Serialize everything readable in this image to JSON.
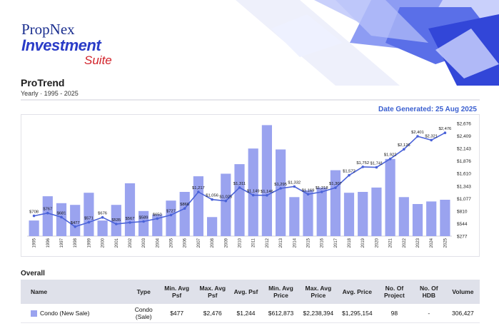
{
  "brand": {
    "line1": "PropNex",
    "line2": "Investment",
    "line3": "Suite"
  },
  "report": {
    "title": "ProTrend",
    "subtitle": "Yearly · 1995 - 2025",
    "generated": "Date Generated: 25 Aug 2025"
  },
  "colors": {
    "bar": "#9aa3ef",
    "line": "#4a62d8",
    "accent": "#3a5fd0"
  },
  "chart_data": {
    "type": "bar",
    "categories": [
      "1995",
      "1996",
      "1997",
      "1998",
      "1999",
      "2000",
      "2001",
      "2002",
      "2003",
      "2004",
      "2005",
      "2006",
      "2007",
      "2008",
      "2009",
      "2010",
      "2011",
      "2012",
      "2013",
      "2014",
      "2015",
      "2016",
      "2017",
      "2018",
      "2019",
      "2020",
      "2021",
      "2022",
      "2023",
      "2024",
      "2025"
    ],
    "series": [
      {
        "type": "bar",
        "axis": "left",
        "values": [
          1800,
          4600,
          3800,
          3600,
          5000,
          1800,
          3600,
          6100,
          2900,
          2500,
          4100,
          5100,
          6900,
          2200,
          7200,
          8300,
          10100,
          12800,
          10000,
          4500,
          5300,
          5600,
          7600,
          5000,
          5100,
          5600,
          8900,
          4500,
          3700,
          4000,
          4200
        ]
      },
      {
        "type": "line",
        "axis": "right",
        "values": [
          708,
          767,
          681,
          477,
          571,
          676,
          535,
          567,
          589,
          650,
          727,
          866,
          1217,
          1056,
          1025,
          1311,
          1149,
          1146,
          1295,
          1332,
          1169,
          1218,
          1307,
          1572,
          1752,
          1741,
          1922,
          2126,
          2401,
          2321,
          2476
        ],
        "labels": [
          "$708",
          "$767",
          "$681",
          "$477",
          "$571",
          "$676",
          "$535",
          "$567",
          "$589",
          "$650",
          "$727",
          "$866",
          "$1,217",
          "$1,056",
          "$1,025",
          "$1,311",
          "$1,149",
          "$1,146",
          "$1,295",
          "$1,332",
          "$1,169",
          "$1,218",
          "$1,307",
          "$1,572",
          "$1,752",
          "$1,741",
          "$1,922",
          "$2,126",
          "$2,401",
          "$2,321",
          "$2,476"
        ]
      }
    ],
    "y_right_ticks": [
      "$2,676",
      "$2,409",
      "$2,143",
      "$1,876",
      "$1,610",
      "$1,343",
      "$1,077",
      "$810",
      "$544",
      "$277"
    ],
    "y_right_range": [
      277,
      2676
    ],
    "grid": false
  },
  "overall": {
    "label": "Overall",
    "headers": [
      "Name",
      "Type",
      "Min. Avg Psf",
      "Max. Avg Psf",
      "Avg. Psf",
      "Min. Avg Price",
      "Max. Avg Price",
      "Avg. Price",
      "No. Of Project",
      "No. Of HDB",
      "Volume"
    ],
    "rows": [
      {
        "name": "Condo (New Sale)",
        "type": "Condo (Sale)",
        "min_psf": "$477",
        "max_psf": "$2,476",
        "avg_psf": "$1,244",
        "min_price": "$612,873",
        "max_price": "$2,238,394",
        "avg_price": "$1,295,154",
        "projects": "98",
        "hdb": "-",
        "volume": "306,427"
      }
    ]
  }
}
